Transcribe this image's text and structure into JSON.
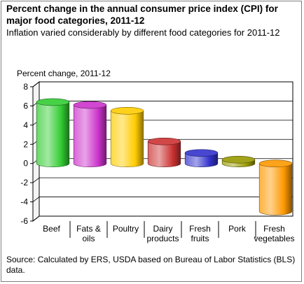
{
  "chart_data": {
    "type": "bar",
    "title": "Percent change in the annual consumer price index (CPI) for major food categories, 2011-12",
    "subtitle": "Inflation varied considerably by different food categories for 2011-12",
    "ylabel": "Percent change, 2011-12",
    "categories": [
      [
        "Beef"
      ],
      [
        "Fats &",
        "oils"
      ],
      [
        "Poultry"
      ],
      [
        "Dairy",
        "products"
      ],
      [
        "Fresh",
        "fruits"
      ],
      [
        "Pork"
      ],
      [
        "Fresh",
        "vegetables"
      ]
    ],
    "values": [
      6.4,
      6.1,
      5.5,
      2.3,
      1.1,
      0.4,
      -5.0
    ],
    "colors": [
      "#33cc33",
      "#cc33cc",
      "#ffcc00",
      "#cc3333",
      "#3333cc",
      "#999900",
      "#ff9900"
    ],
    "ylim": [
      -6,
      8
    ],
    "yticks": [
      -6,
      -4,
      -2,
      0,
      2,
      4,
      6,
      8
    ],
    "grid": true,
    "legend": "none",
    "style": "3d-cylinder",
    "source": "Source: Calculated by ERS, USDA based on Bureau of Labor Statistics (BLS) data."
  }
}
